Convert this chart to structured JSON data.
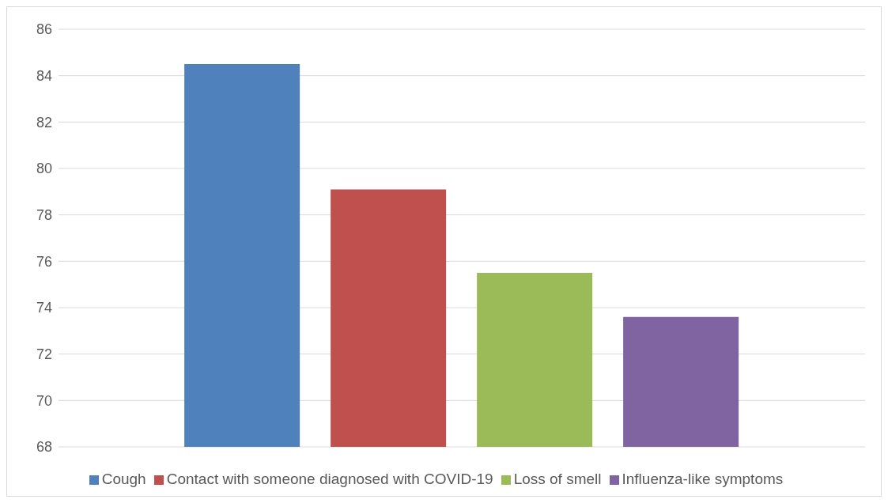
{
  "chart_data": {
    "type": "bar",
    "categories": [
      null
    ],
    "series": [
      {
        "name": "Cough",
        "color": "#4f81bd",
        "values": [
          84.5
        ]
      },
      {
        "name": "Contact with someone diagnosed with COVID-19",
        "color": "#c0504d",
        "values": [
          79.1
        ]
      },
      {
        "name": "Loss of smell",
        "color": "#9bbb59",
        "values": [
          75.5
        ]
      },
      {
        "name": "Influenza-like symptoms",
        "color": "#8064a2",
        "values": [
          73.6
        ]
      }
    ],
    "ylim": [
      68,
      86
    ],
    "yticks": [
      68,
      70,
      72,
      74,
      76,
      78,
      80,
      82,
      84,
      86
    ],
    "grid": "y",
    "legend": "bottom"
  }
}
